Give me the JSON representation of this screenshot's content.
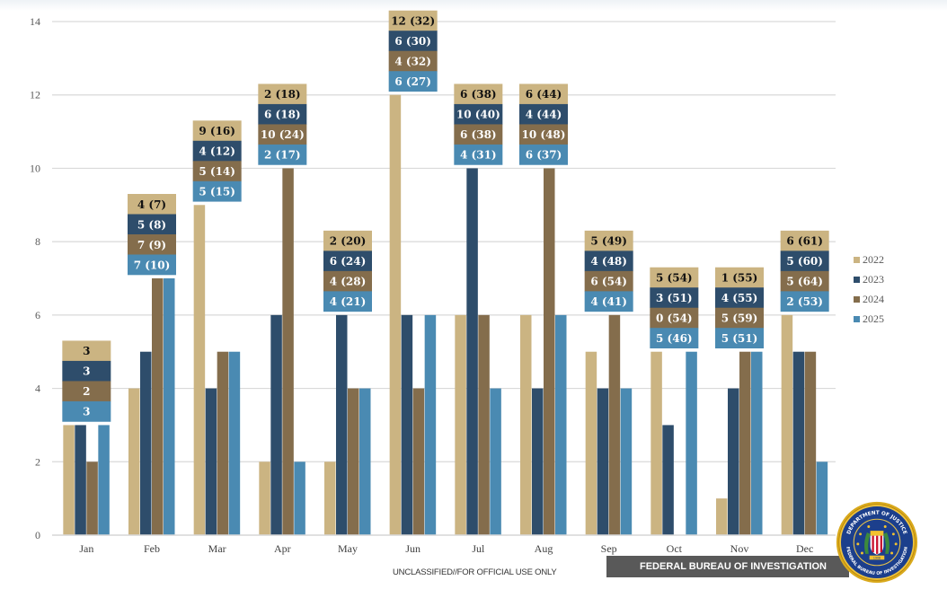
{
  "chart_data": {
    "type": "bar",
    "title": "",
    "xlabel": "",
    "ylabel": "",
    "ylim": [
      0,
      14
    ],
    "yticks": [
      0,
      2,
      4,
      6,
      8,
      10,
      12,
      14
    ],
    "grid": true,
    "legend_position": "right",
    "categories": [
      "Jan",
      "Feb",
      "Mar",
      "Apr",
      "May",
      "Jun",
      "Jul",
      "Aug",
      "Sep",
      "Oct",
      "Nov",
      "Dec"
    ],
    "series": [
      {
        "name": "2022",
        "color": "#CBB482",
        "values": [
          3,
          4,
          9,
          2,
          2,
          12,
          6,
          6,
          5,
          5,
          1,
          6
        ],
        "labels": [
          "3",
          "4 (7)",
          "9 (16)",
          "2 (18)",
          "2 (20)",
          "12 (32)",
          "6 (38)",
          "6 (44)",
          "5 (49)",
          "5 (54)",
          "1 (55)",
          "6 (61)"
        ]
      },
      {
        "name": "2023",
        "color": "#2E4D6B",
        "values": [
          3,
          5,
          4,
          6,
          6,
          6,
          10,
          4,
          4,
          3,
          4,
          5
        ],
        "labels": [
          "3",
          "5 (8)",
          "4 (12)",
          "6 (18)",
          "6 (24)",
          "6 (30)",
          "10 (40)",
          "4 (44)",
          "4 (48)",
          "3 (51)",
          "4 (55)",
          "5 (60)"
        ]
      },
      {
        "name": "2024",
        "color": "#846D4C",
        "values": [
          2,
          7,
          5,
          10,
          4,
          4,
          6,
          10,
          6,
          0,
          5,
          5
        ],
        "labels": [
          "2",
          "7 (9)",
          "5 (14)",
          "10 (24)",
          "4 (28)",
          "4 (32)",
          "6 (38)",
          "10 (48)",
          "6 (54)",
          "0 (54)",
          "5 (59)",
          "5 (64)"
        ]
      },
      {
        "name": "2025",
        "color": "#4A8AB2",
        "values": [
          3,
          7,
          5,
          2,
          4,
          6,
          4,
          6,
          4,
          5,
          5,
          2
        ],
        "labels": [
          "3",
          "7 (10)",
          "5 (15)",
          "2 (17)",
          "4 (21)",
          "6 (27)",
          "4 (31)",
          "6 (37)",
          "4 (41)",
          "5 (46)",
          "5 (51)",
          "2 (53)"
        ]
      }
    ]
  },
  "footer": {
    "classification": "UNCLASSIFIED//FOR OFFICIAL USE ONLY",
    "agency": "FEDERAL BUREAU OF INVESTIGATION"
  },
  "seal": {
    "top_text": "DEPARTMENT OF JUSTICE",
    "bottom_text": "FEDERAL BUREAU OF INVESTIGATION",
    "ribbon_text": "1908"
  }
}
